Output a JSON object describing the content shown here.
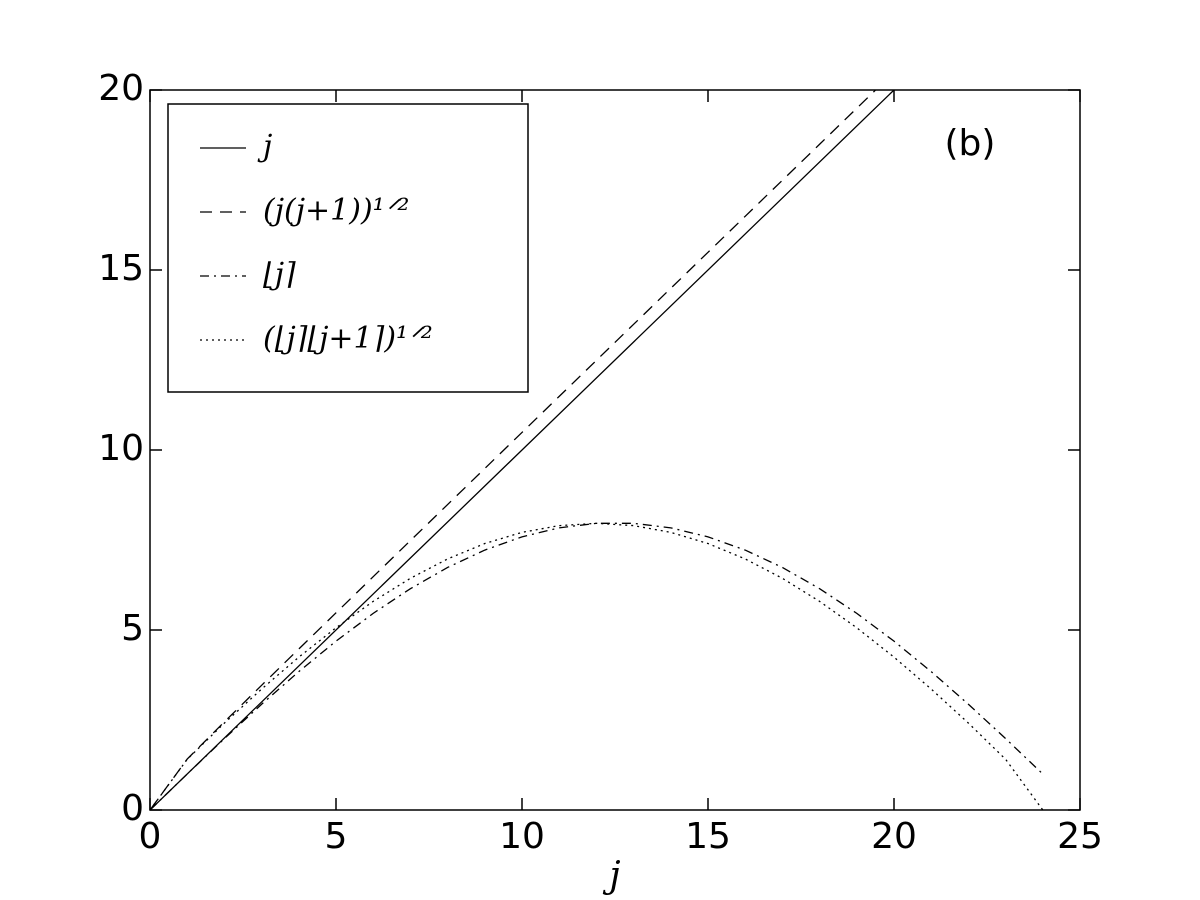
{
  "chart_data": {
    "type": "line",
    "xlabel": "j",
    "annotation": "(b)",
    "xlim": [
      0,
      25
    ],
    "xticks": [
      0,
      5,
      10,
      15,
      20,
      25
    ],
    "ylim": [
      0,
      20
    ],
    "yticks": [
      0,
      5,
      10,
      15,
      20
    ],
    "legend": "upper left",
    "series": [
      {
        "name": "j",
        "color": "#000000",
        "style": "solid",
        "x": [
          0,
          20
        ],
        "values": [
          0,
          20
        ]
      },
      {
        "name": "(j(j+1))¹ᐟ²",
        "color": "#000000",
        "style": "dashed",
        "x": [
          0,
          1,
          2,
          3,
          4,
          5,
          6,
          7,
          8,
          9,
          10,
          11,
          12,
          13,
          14,
          15,
          16,
          17,
          18,
          19,
          19.5
        ],
        "values": [
          0,
          1.414,
          2.449,
          3.464,
          4.472,
          5.477,
          6.481,
          7.483,
          8.485,
          9.487,
          10.488,
          11.489,
          12.49,
          13.491,
          14.491,
          15.492,
          16.492,
          17.493,
          18.493,
          19.494,
          19.994
        ]
      },
      {
        "name": "⌊j⌉",
        "color": "#000000",
        "style": "dashdot",
        "x": [
          0,
          1,
          2,
          3,
          4,
          5,
          6,
          7,
          8,
          9,
          10,
          11,
          12,
          13,
          14,
          15,
          16,
          17,
          18,
          19,
          20,
          21,
          22,
          23,
          24
        ],
        "values": [
          0,
          1,
          1.984,
          2.937,
          3.844,
          4.69,
          5.462,
          6.148,
          6.737,
          7.22,
          7.588,
          7.838,
          7.963,
          7.963,
          7.838,
          7.588,
          7.22,
          6.737,
          6.148,
          5.462,
          4.69,
          3.844,
          2.937,
          1.984,
          1
        ]
      },
      {
        "name": "(⌊j⌉⌊j+1⌉)¹ᐟ²",
        "color": "#000000",
        "style": "dotted",
        "x": [
          0,
          1,
          2,
          3,
          4,
          5,
          6,
          7,
          8,
          9,
          10,
          11,
          12,
          13,
          14,
          15,
          16,
          17,
          18,
          19,
          20,
          21,
          22,
          23,
          24
        ],
        "values": [
          0,
          1.409,
          2.414,
          3.36,
          4.246,
          5.061,
          5.795,
          6.436,
          6.974,
          7.402,
          7.712,
          7.9,
          7.963,
          7.9,
          7.712,
          7.402,
          6.974,
          6.436,
          5.795,
          5.061,
          4.246,
          3.36,
          2.414,
          1.409,
          0
        ]
      }
    ]
  }
}
